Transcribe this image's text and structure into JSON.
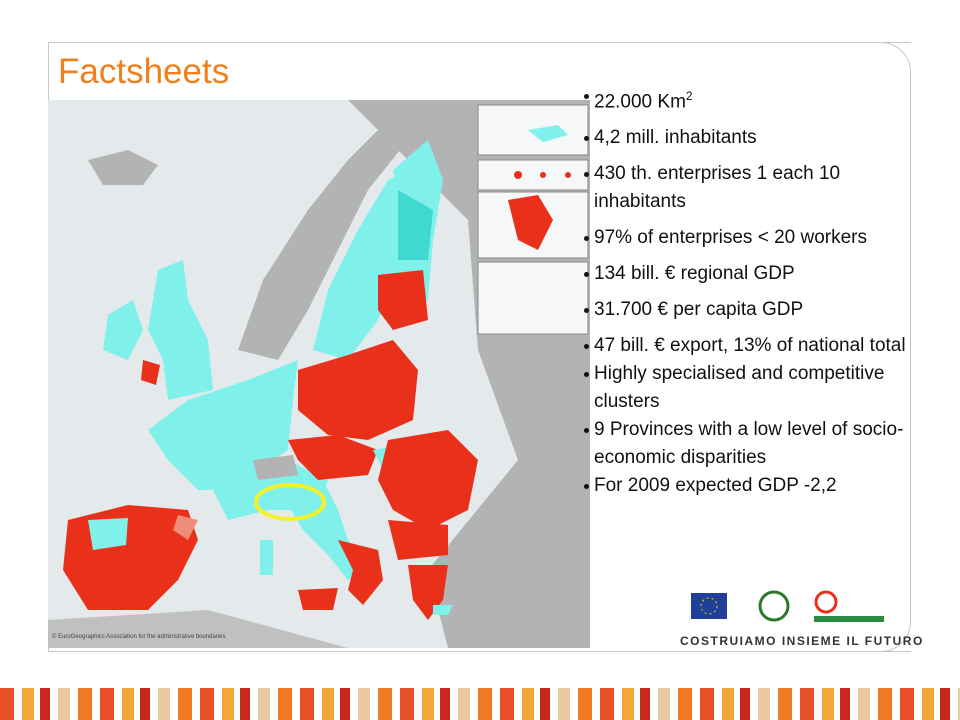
{
  "slide": {
    "title": "Factsheets",
    "bullets": [
      {
        "text": "22.000 Km",
        "sup": "2"
      },
      {
        "text": "4,2 mill. inhabitants"
      },
      {
        "text": "430 th. enterprises 1 each 10 inhabitants"
      },
      {
        "text": "97% of enterprises < 20 workers"
      },
      {
        "text": "134 bill. € regional GDP"
      },
      {
        "text": "31.700 € per capita GDP"
      },
      {
        "text": "47 bill.  € export, 13% of national total"
      },
      {
        "text": "Highly specialised and competitive clusters"
      },
      {
        "text": "9 Provinces with a low level of socio-economic disparities"
      },
      {
        "text": "For 2009 expected GDP -2,2"
      }
    ],
    "map_credit": "© EuroGeographics Association for the administrative boundaries",
    "motto": "COSTRUIAMO INSIEME IL FUTURO"
  }
}
